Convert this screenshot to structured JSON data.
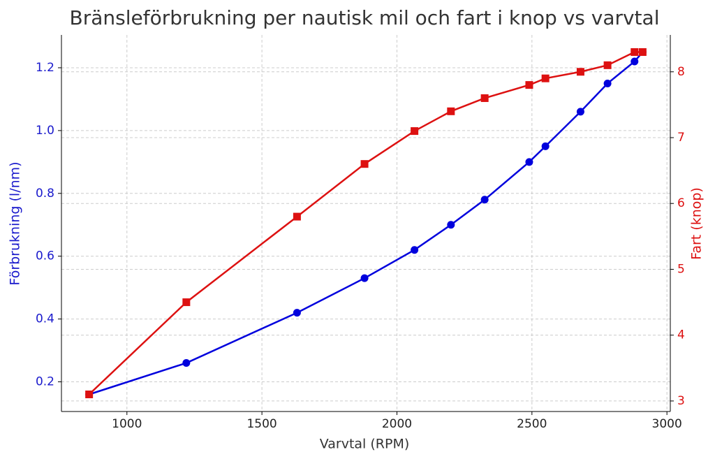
{
  "chart_data": {
    "type": "line",
    "title": "Bränsleförbrukning per nautisk mil och fart i knop vs varvtal",
    "x_label": "Varvtal (RPM)",
    "y_label": "Förbrukning (l/nm)",
    "y2_label": "Fart (knop)",
    "x": [
      860,
      1220,
      1630,
      1880,
      2065,
      2200,
      2325,
      2490,
      2550,
      2680,
      2780,
      2880,
      2910
    ],
    "series": [
      {
        "name": "Förbrukning (l/nm)",
        "color": "#0000dd",
        "marker": "circle",
        "axis": "y",
        "values": [
          0.16,
          0.26,
          0.42,
          0.53,
          0.62,
          0.7,
          0.78,
          0.9,
          0.95,
          1.06,
          1.15,
          1.22,
          1.25
        ]
      },
      {
        "name": "Fart (knop)",
        "color": "#dd1111",
        "marker": "square",
        "axis": "y2",
        "values": [
          3.1,
          4.5,
          5.8,
          6.6,
          7.1,
          7.4,
          7.6,
          7.8,
          7.9,
          8.0,
          8.1,
          8.3,
          8.3
        ]
      }
    ],
    "xlim": [
      757.5,
      3012.5
    ],
    "xticks": [
      1000,
      1500,
      2000,
      2500,
      3000
    ],
    "ylim": [
      0.1055,
      1.3045
    ],
    "yticks": [
      0.2,
      0.4,
      0.6,
      0.8,
      {
        "value": 1,
        "label": "1.0"
      },
      1.2
    ],
    "y2lim": [
      2.84,
      8.56
    ],
    "y2ticks": [
      3,
      4,
      5,
      6,
      7,
      8
    ],
    "grid": true
  }
}
